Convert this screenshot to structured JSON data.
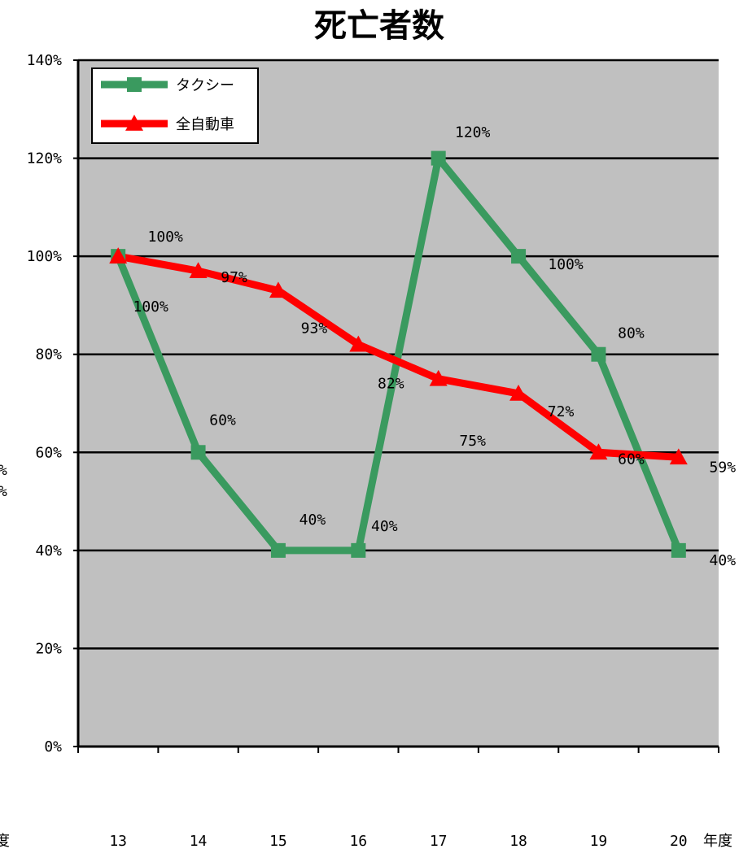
{
  "chart_data": {
    "type": "line",
    "title": "死亡者数",
    "xlabel": "年度",
    "ylabel": "",
    "categories": [
      "13",
      "14",
      "15",
      "16",
      "17",
      "18",
      "19",
      "20"
    ],
    "ylim": [
      0,
      140
    ],
    "yticks": [
      "0%",
      "20%",
      "40%",
      "60%",
      "80%",
      "100%",
      "120%",
      "140%"
    ],
    "grid": true,
    "legend_position": "top-left",
    "series": [
      {
        "name": "タクシー",
        "color": "#3a9a5f",
        "marker": "square",
        "values": [
          100,
          60,
          40,
          40,
          120,
          100,
          80,
          40
        ],
        "labels": [
          "100%",
          "60%",
          "40%",
          "40%",
          "120%",
          "100%",
          "80%",
          "40%"
        ]
      },
      {
        "name": "全自動車",
        "color": "#ff0000",
        "marker": "triangle",
        "values": [
          100,
          97,
          93,
          82,
          75,
          72,
          60,
          59
        ],
        "labels": [
          "100%",
          "97%",
          "93%",
          "82%",
          "75%",
          "72%",
          "60%",
          "59%"
        ]
      }
    ],
    "left_edge_fragments": [
      "%",
      "%",
      "度"
    ]
  }
}
